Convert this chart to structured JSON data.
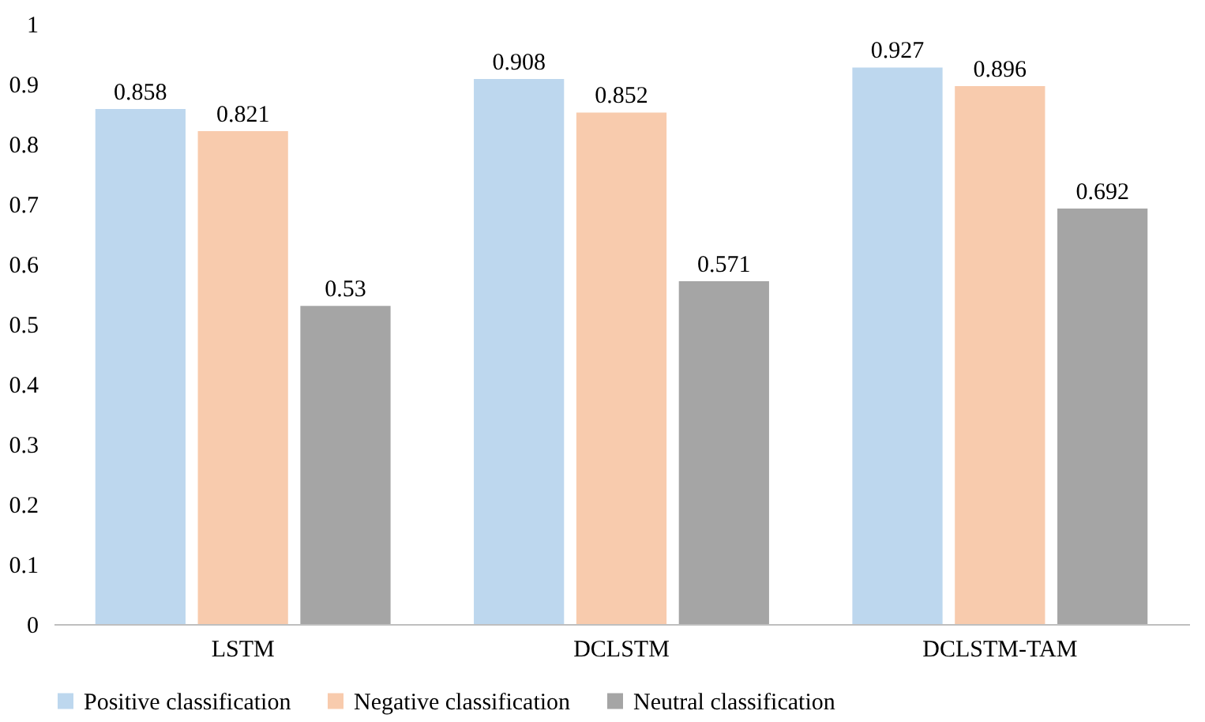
{
  "chart_data": {
    "type": "bar",
    "categories": [
      "LSTM",
      "DCLSTM",
      "DCLSTM-TAM"
    ],
    "series": [
      {
        "name": "Positive classification",
        "color": "#bdd7ee",
        "values": [
          0.858,
          0.908,
          0.927
        ]
      },
      {
        "name": "Negative classification",
        "color": "#f8cbad",
        "values": [
          0.821,
          0.852,
          0.896
        ]
      },
      {
        "name": "Neutral classification",
        "color": "#a5a5a5",
        "values": [
          0.53,
          0.571,
          0.692
        ]
      }
    ],
    "ylim": [
      0,
      1
    ],
    "yticks": [
      0,
      0.1,
      0.2,
      0.3,
      0.4,
      0.5,
      0.6,
      0.7,
      0.8,
      0.9,
      1
    ],
    "grid": false,
    "legend": "bottom",
    "data_labels": true
  }
}
